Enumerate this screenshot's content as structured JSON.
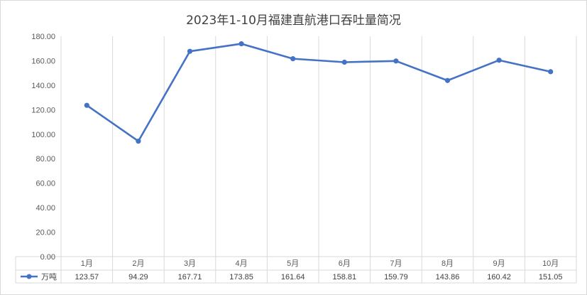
{
  "chart_data": {
    "type": "line",
    "title": "2023年1-10月福建直航港口吞吐量简况",
    "categories": [
      "1月",
      "2月",
      "3月",
      "4月",
      "5月",
      "6月",
      "7月",
      "8月",
      "9月",
      "10月"
    ],
    "series": [
      {
        "name": "万吨",
        "values": [
          123.57,
          94.29,
          167.71,
          173.85,
          161.64,
          158.81,
          159.79,
          143.86,
          160.42,
          151.05
        ]
      }
    ],
    "value_labels": [
      "123.57",
      "94.29",
      "167.71",
      "173.85",
      "161.64",
      "158.81",
      "159.79",
      "143.86",
      "160.42",
      "151.05"
    ],
    "yticks": [
      "0.00",
      "20.00",
      "40.00",
      "60.00",
      "80.00",
      "100.00",
      "120.00",
      "140.00",
      "160.00",
      "180.00"
    ],
    "ylim": [
      0,
      180
    ],
    "grid": "vertical",
    "legend": "data-table",
    "line_color": "#4472c4"
  }
}
